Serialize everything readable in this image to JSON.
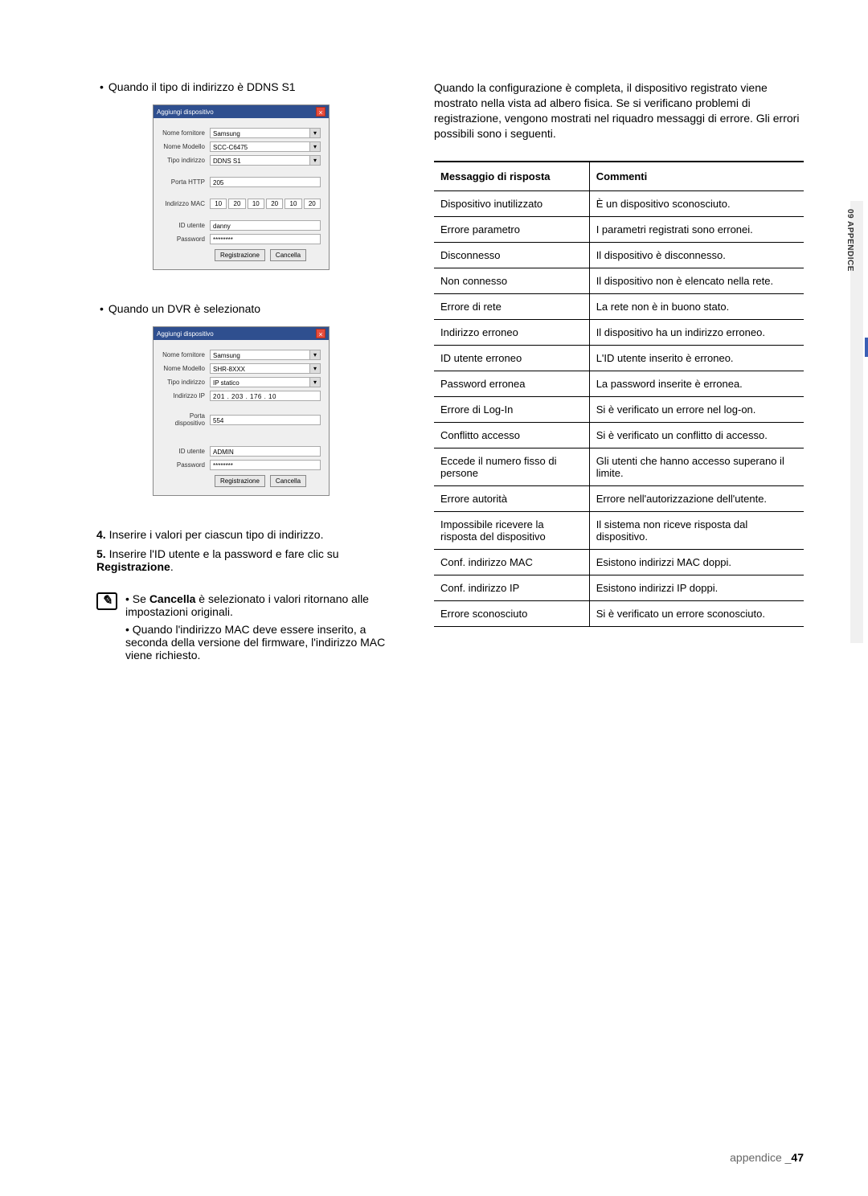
{
  "left": {
    "bullet_ddns": "Quando il tipo di indirizzo è DDNS S1",
    "dialog1": {
      "title": "Aggiungi dispositivo",
      "fields": {
        "vendor_label": "Nome fornitore",
        "vendor_value": "Samsung",
        "model_label": "Nome Modello",
        "model_value": "SCC-C6475",
        "addr_type_label": "Tipo indirizzo",
        "addr_type_value": "DDNS S1",
        "http_port_label": "Porta HTTP",
        "http_port_value": "205",
        "mac_label": "Indirizzo MAC",
        "mac": [
          "10",
          "20",
          "10",
          "20",
          "10",
          "20"
        ],
        "user_label": "ID utente",
        "user_value": "danny",
        "pass_label": "Password",
        "pass_value": "********"
      },
      "btn_reg": "Registrazione",
      "btn_cancel": "Cancella"
    },
    "bullet_dvr": "Quando un DVR è selezionato",
    "dialog2": {
      "title": "Aggiungi dispositivo",
      "fields": {
        "vendor_label": "Nome fornitore",
        "vendor_value": "Samsung",
        "model_label": "Nome Modello",
        "model_value": "SHR-8XXX",
        "addr_type_label": "Tipo indirizzo",
        "addr_type_value": "IP statico",
        "ip_label": "Indirizzo IP",
        "ip_value": "201 . 203 . 176 . 10",
        "dev_port_label": "Porta dispositivo",
        "dev_port_value": "554",
        "user_label": "ID utente",
        "user_value": "ADMIN",
        "pass_label": "Password",
        "pass_value": "********"
      },
      "btn_reg": "Registrazione",
      "btn_cancel": "Cancella"
    },
    "step4_num": "4.",
    "step4": "Inserire i valori per ciascun tipo di indirizzo.",
    "step5_num": "5.",
    "step5_pre": "Inserire l'ID utente e la password e fare clic su ",
    "step5_bold": "Registrazione",
    "step5_post": ".",
    "note1_pre": "Se ",
    "note1_bold": "Cancella",
    "note1_post": " è selezionato i valori ritornano alle impostazioni originali.",
    "note2": "Quando l'indirizzo MAC deve essere inserito, a seconda della versione del firmware, l'indirizzo MAC viene richiesto."
  },
  "right": {
    "intro": "Quando la configurazione è completa, il dispositivo registrato viene mostrato nella vista ad albero fisica. Se si verificano problemi di registrazione, vengono mostrati nel riquadro messaggi di errore. Gli errori possibili sono i seguenti.",
    "th1": "Messaggio di risposta",
    "th2": "Commenti",
    "rows": [
      [
        "Dispositivo inutilizzato",
        "È un dispositivo sconosciuto."
      ],
      [
        "Errore parametro",
        "I parametri registrati sono erronei."
      ],
      [
        "Disconnesso",
        "Il dispositivo è disconnesso."
      ],
      [
        "Non connesso",
        "Il dispositivo non è elencato nella rete."
      ],
      [
        "Errore di rete",
        "La rete non è in buono stato."
      ],
      [
        "Indirizzo erroneo",
        "Il dispositivo ha un indirizzo erroneo."
      ],
      [
        "ID utente erroneo",
        "L'ID utente inserito è erroneo."
      ],
      [
        "Password erronea",
        "La password inserite è erronea."
      ],
      [
        "Errore di Log-In",
        "Si è verificato un errore nel log-on."
      ],
      [
        "Conflitto accesso",
        "Si è verificato un conflitto di accesso."
      ],
      [
        "Eccede il numero fisso di persone",
        "Gli utenti che hanno accesso superano il limite."
      ],
      [
        "Errore autorità",
        "Errore nell'autorizzazione dell'utente."
      ],
      [
        "Impossibile ricevere la risposta del dispositivo",
        "Il sistema non riceve risposta dal dispositivo."
      ],
      [
        "Conf. indirizzo MAC",
        "Esistono indirizzi MAC doppi."
      ],
      [
        "Conf. indirizzo IP",
        "Esistono indirizzi IP doppi."
      ],
      [
        "Errore sconosciuto",
        "Si è verificato un errore sconosciuto."
      ]
    ]
  },
  "side_label": "09 APPENDICE",
  "footer_text": "appendice _",
  "footer_page": "47"
}
